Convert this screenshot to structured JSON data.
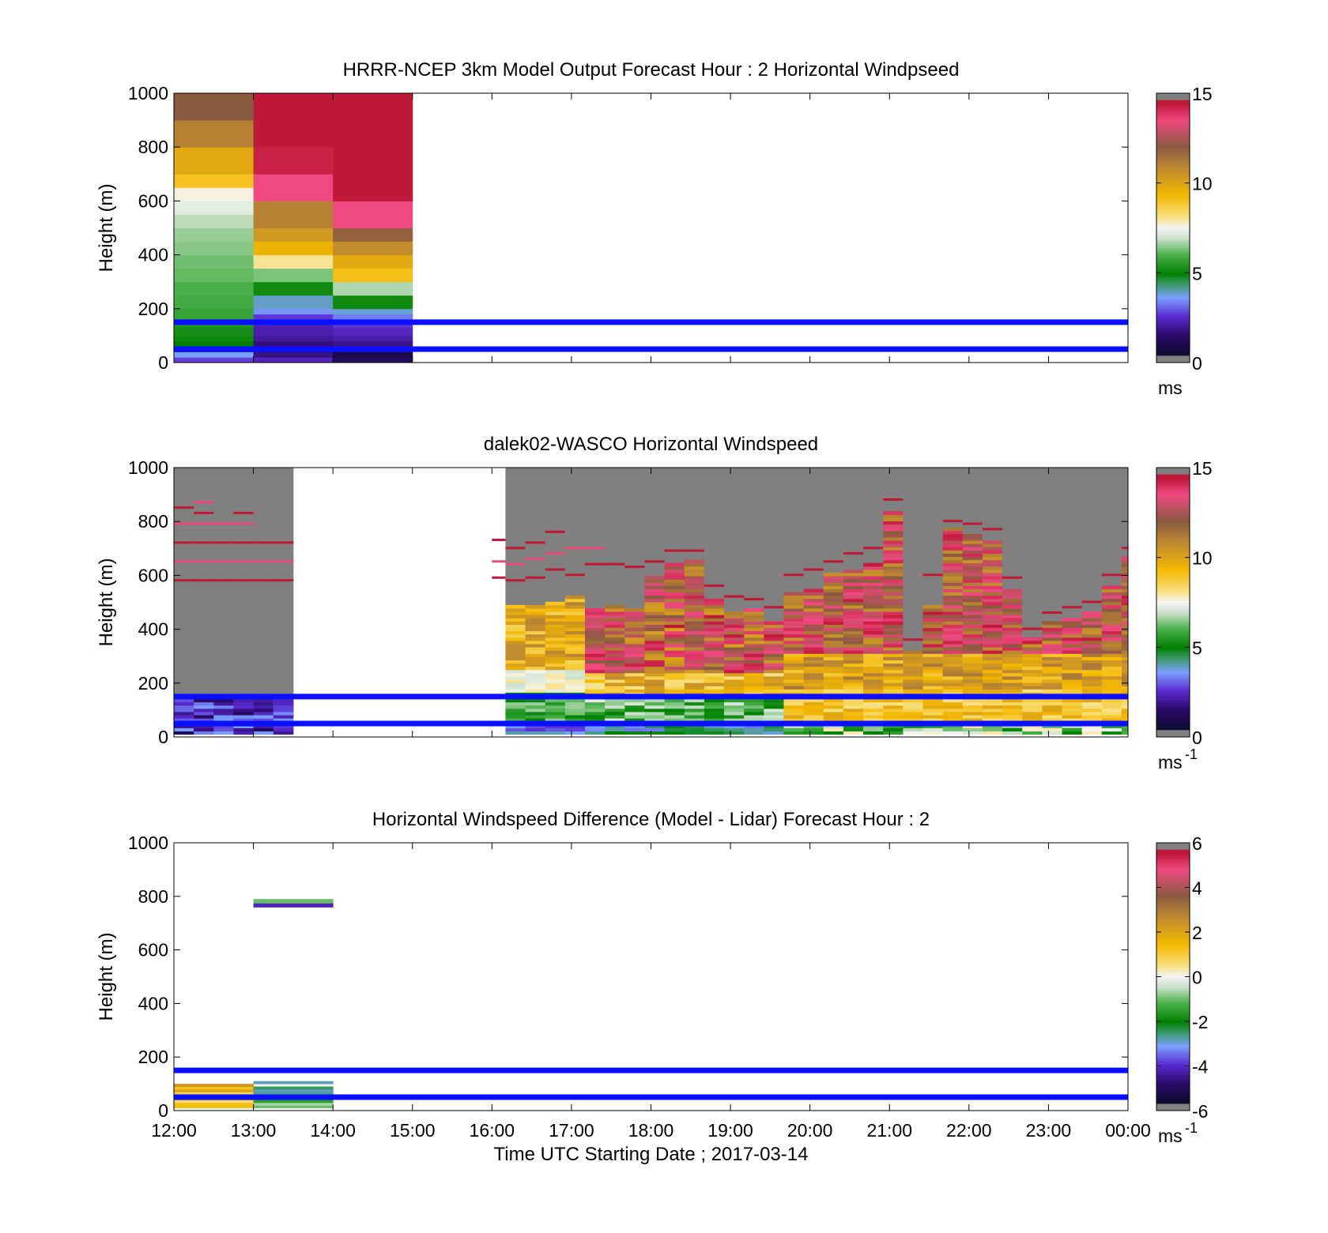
{
  "chart_data": [
    {
      "type": "heatmap",
      "title": "HRRR-NCEP 3km Model Output   Forecast Hour : 2 Horizontal Windpseed",
      "ylabel": "Height (m)",
      "xlabel": "",
      "xlim": [
        12,
        24
      ],
      "ylim": [
        0,
        1000
      ],
      "yticks": [
        "0",
        "200",
        "400",
        "600",
        "800",
        "1000"
      ],
      "xticks": [
        "12:00",
        "13:00",
        "14:00",
        "15:00",
        "16:00",
        "17:00",
        "18:00",
        "19:00",
        "20:00",
        "21:00",
        "22:00",
        "23:00",
        "00:00"
      ],
      "show_xtick_labels": false,
      "colorbar": {
        "id": "speed",
        "ticks": [
          "0",
          "5",
          "10",
          "15"
        ],
        "range": [
          0,
          15
        ],
        "unit": "ms",
        "unit_sup": ""
      },
      "reference_lines_m": [
        50,
        150
      ],
      "columns": [
        {
          "t0": 12,
          "t1": 13,
          "cells": [
            [
              0,
              20,
              2.6
            ],
            [
              20,
              40,
              3.4
            ],
            [
              40,
              60,
              0.9
            ],
            [
              60,
              80,
              5.0
            ],
            [
              80,
              100,
              5.2
            ],
            [
              100,
              130,
              5.3
            ],
            [
              130,
              150,
              5.4
            ],
            [
              150,
              200,
              5.7
            ],
            [
              200,
              250,
              5.9
            ],
            [
              250,
              300,
              6.0
            ],
            [
              300,
              350,
              6.2
            ],
            [
              350,
              400,
              6.3
            ],
            [
              400,
              450,
              6.5
            ],
            [
              450,
              500,
              6.6
            ],
            [
              500,
              550,
              6.9
            ],
            [
              550,
              600,
              7.3
            ],
            [
              600,
              650,
              7.6
            ],
            [
              650,
              700,
              9.0
            ],
            [
              700,
              800,
              9.8
            ],
            [
              800,
              900,
              11.0
            ],
            [
              900,
              1000,
              12.0
            ]
          ]
        },
        {
          "t0": 13,
          "t1": 14,
          "cells": [
            [
              0,
              20,
              2.2
            ],
            [
              20,
              40,
              1.5
            ],
            [
              40,
              60,
              1.2
            ],
            [
              60,
              80,
              1.4
            ],
            [
              80,
              100,
              1.8
            ],
            [
              100,
              130,
              2.0
            ],
            [
              130,
              150,
              2.1
            ],
            [
              150,
              180,
              2.5
            ],
            [
              180,
              200,
              3.3
            ],
            [
              200,
              250,
              3.7
            ],
            [
              250,
              300,
              5.2
            ],
            [
              300,
              350,
              6.4
            ],
            [
              350,
              400,
              8.0
            ],
            [
              400,
              450,
              9.5
            ],
            [
              450,
              500,
              10.3
            ],
            [
              500,
              600,
              11.0
            ],
            [
              600,
              700,
              13.5
            ],
            [
              700,
              800,
              14.3
            ],
            [
              800,
              1000,
              15.0
            ]
          ]
        },
        {
          "t0": 14,
          "t1": 15,
          "cells": [
            [
              0,
              20,
              0.9
            ],
            [
              20,
              40,
              0.6
            ],
            [
              40,
              60,
              1.3
            ],
            [
              60,
              80,
              1.6
            ],
            [
              80,
              100,
              1.9
            ],
            [
              100,
              130,
              2.2
            ],
            [
              130,
              150,
              2.5
            ],
            [
              150,
              180,
              3.1
            ],
            [
              180,
              200,
              3.6
            ],
            [
              200,
              250,
              5.2
            ],
            [
              250,
              300,
              6.8
            ],
            [
              300,
              350,
              9.1
            ],
            [
              350,
              400,
              9.8
            ],
            [
              400,
              450,
              10.7
            ],
            [
              450,
              500,
              11.8
            ],
            [
              500,
              600,
              13.5
            ],
            [
              600,
              1000,
              15.0
            ]
          ]
        }
      ]
    },
    {
      "type": "heatmap",
      "title": "dalek02-WASCO  Horizontal Windspeed",
      "ylabel": "Height (m)",
      "xlabel": "",
      "xlim": [
        12,
        24
      ],
      "ylim": [
        0,
        1000
      ],
      "yticks": [
        "0",
        "200",
        "400",
        "600",
        "800",
        "1000"
      ],
      "xticks": [
        "12:00",
        "13:00",
        "14:00",
        "15:00",
        "16:00",
        "17:00",
        "18:00",
        "19:00",
        "20:00",
        "21:00",
        "22:00",
        "23:00",
        "00:00"
      ],
      "show_xtick_labels": false,
      "colorbar": {
        "id": "speed",
        "ticks": [
          "0",
          "5",
          "10",
          "15"
        ],
        "range": [
          0,
          15
        ],
        "unit": "ms",
        "unit_sup": "-1"
      },
      "reference_lines_m": [
        50,
        150
      ],
      "lidar_profiles": [
        [
          12.0,
          12.25,
          120,
          "purple",
          [
            580,
            650,
            720,
            790,
            850
          ]
        ],
        [
          12.25,
          12.5,
          125,
          "purple",
          [
            580,
            650,
            720,
            790,
            830,
            870
          ]
        ],
        [
          12.5,
          12.75,
          110,
          "purple",
          [
            580,
            650,
            720,
            790
          ]
        ],
        [
          12.75,
          13.0,
          100,
          "purple",
          [
            580,
            650,
            720,
            790,
            830
          ]
        ],
        [
          13.0,
          13.25,
          95,
          "purple",
          [
            580,
            650,
            720
          ]
        ],
        [
          13.25,
          13.5,
          80,
          "purple",
          [
            580,
            650,
            720
          ]
        ],
        [
          16.0,
          16.25,
          0,
          "none",
          [
            590,
            650,
            730
          ]
        ],
        [
          16.17,
          16.42,
          480,
          "green",
          [
            580,
            640,
            700
          ]
        ],
        [
          16.42,
          16.67,
          480,
          "green",
          [
            590,
            660,
            720
          ]
        ],
        [
          16.67,
          16.92,
          500,
          "green",
          [
            620,
            680,
            760
          ]
        ],
        [
          16.92,
          17.17,
          520,
          "green",
          [
            600,
            700
          ]
        ],
        [
          17.17,
          17.42,
          470,
          "mixed",
          [
            640,
            700
          ]
        ],
        [
          17.42,
          17.67,
          480,
          "mixed",
          [
            640
          ]
        ],
        [
          17.67,
          17.92,
          470,
          "mixed",
          [
            630
          ]
        ],
        [
          17.92,
          18.17,
          590,
          "mixed",
          [
            650
          ]
        ],
        [
          18.17,
          18.42,
          640,
          "mixed",
          [
            690
          ]
        ],
        [
          18.42,
          18.67,
          650,
          "mixed",
          [
            690
          ]
        ],
        [
          18.67,
          18.92,
          510,
          "mixed",
          [
            560
          ]
        ],
        [
          18.92,
          19.17,
          460,
          "mixed",
          [
            520
          ]
        ],
        [
          19.17,
          19.42,
          470,
          "mixed",
          [
            510
          ]
        ],
        [
          19.42,
          19.67,
          430,
          "mixed",
          [
            480
          ]
        ],
        [
          19.67,
          19.92,
          530,
          "yellow",
          [
            600
          ]
        ],
        [
          19.92,
          20.17,
          540,
          "yellow",
          [
            620
          ]
        ],
        [
          20.17,
          20.42,
          600,
          "yellow",
          [
            650
          ]
        ],
        [
          20.42,
          20.67,
          620,
          "yellow",
          [
            680
          ]
        ],
        [
          20.67,
          20.92,
          640,
          "yellow",
          [
            700
          ]
        ],
        [
          20.92,
          21.17,
          830,
          "yellow",
          [
            880
          ]
        ],
        [
          21.17,
          21.42,
          320,
          "yellow",
          [
            360
          ]
        ],
        [
          21.42,
          21.67,
          480,
          "yellow",
          [
            600
          ]
        ],
        [
          21.67,
          21.92,
          770,
          "yellow",
          [
            800
          ]
        ],
        [
          21.92,
          22.17,
          750,
          "yellow",
          [
            790
          ]
        ],
        [
          22.17,
          22.42,
          730,
          "yellow",
          [
            770
          ]
        ],
        [
          22.42,
          22.67,
          540,
          "yellow",
          [
            590
          ]
        ],
        [
          22.67,
          22.92,
          360,
          "yellow",
          [
            400
          ]
        ],
        [
          22.92,
          23.17,
          420,
          "yellow",
          [
            460
          ]
        ],
        [
          23.17,
          23.42,
          440,
          "yellow",
          [
            480
          ]
        ],
        [
          23.42,
          23.67,
          460,
          "yellow",
          [
            500
          ]
        ],
        [
          23.67,
          23.92,
          560,
          "yellow",
          [
            600
          ]
        ],
        [
          23.92,
          24.0,
          660,
          "yellow",
          [
            700
          ]
        ]
      ]
    },
    {
      "type": "heatmap",
      "title": "Horizontal Windspeed Difference (Model - Lidar) Forecast Hour : 2",
      "ylabel": "Height (m)",
      "xlabel": "Time UTC  Starting Date ; 2017-03-14",
      "xlim": [
        12,
        24
      ],
      "ylim": [
        0,
        1000
      ],
      "yticks": [
        "0",
        "200",
        "400",
        "600",
        "800",
        "1000"
      ],
      "xticks": [
        "12:00",
        "13:00",
        "14:00",
        "15:00",
        "16:00",
        "17:00",
        "18:00",
        "19:00",
        "20:00",
        "21:00",
        "22:00",
        "23:00",
        "00:00"
      ],
      "show_xtick_labels": true,
      "colorbar": {
        "id": "diff",
        "ticks": [
          "-6",
          "-4",
          "-2",
          "0",
          "2",
          "4",
          "6"
        ],
        "range": [
          -6,
          6
        ],
        "unit": "ms",
        "unit_sup": "-1"
      },
      "reference_lines_m": [
        50,
        150
      ],
      "columns": [
        {
          "t0": 12,
          "t1": 13,
          "cells": [
            [
              10,
              30,
              1.3
            ],
            [
              30,
              40,
              0.6
            ],
            [
              40,
              50,
              1.8
            ],
            [
              50,
              60,
              1.5
            ],
            [
              60,
              70,
              0.8
            ],
            [
              70,
              80,
              2.0
            ],
            [
              80,
              90,
              1.2
            ],
            [
              90,
              100,
              2.3
            ]
          ]
        },
        {
          "t0": 13,
          "t1": 14,
          "cells": [
            [
              10,
              20,
              -1.0
            ],
            [
              20,
              30,
              -0.6
            ],
            [
              30,
              40,
              -1.5
            ],
            [
              40,
              50,
              -2.3
            ],
            [
              50,
              60,
              -0.9
            ],
            [
              60,
              70,
              -2.8
            ],
            [
              70,
              80,
              -3.0
            ],
            [
              80,
              90,
              -2.6
            ],
            [
              100,
              110,
              -3.0
            ],
            [
              760,
              775,
              -4.3
            ],
            [
              775,
              790,
              -1.0
            ]
          ]
        }
      ]
    }
  ]
}
